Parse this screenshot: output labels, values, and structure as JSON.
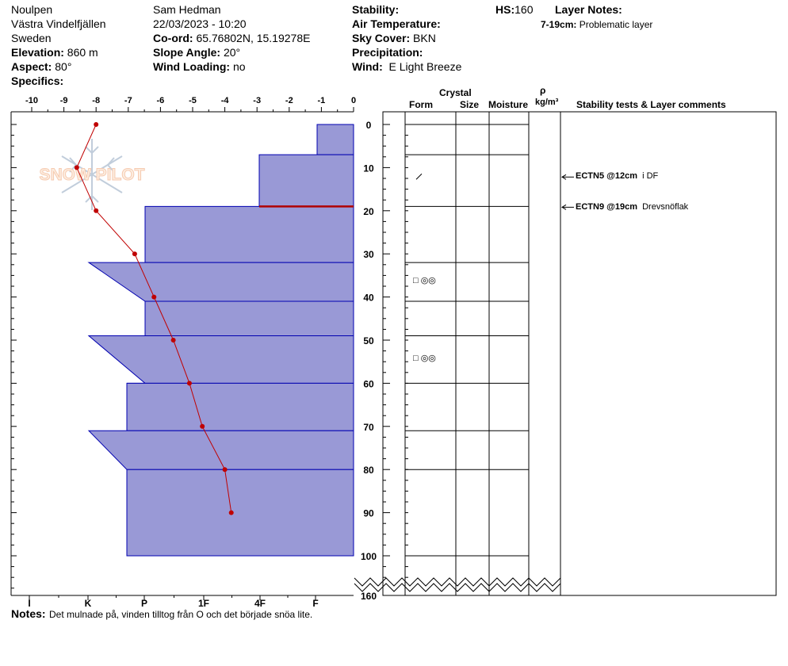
{
  "header": {
    "location": "Noulpen",
    "region": "Västra Vindelfjällen",
    "country": "Sweden",
    "elevation_label": "Elevation:",
    "elevation_value": "860 m",
    "aspect_label": "Aspect:",
    "aspect_value": "80°",
    "specifics_label": "Specifics:",
    "observer": "Sam Hedman",
    "datetime": "22/03/2023 - 10:20",
    "coord_label": "Co-ord:",
    "coord_value": "65.76802N, 15.19278E",
    "slope_label": "Slope Angle:",
    "slope_value": "20°",
    "wind_loading_label": "Wind Loading:",
    "wind_loading_value": "no",
    "stability_label": "Stability:",
    "air_temp_label": "Air Temperature:",
    "sky_cover_label": "Sky Cover:",
    "sky_cover_value": "BKN",
    "precip_label": "Precipitation:",
    "wind_label": "Wind:",
    "wind_value": "E Light Breeze",
    "hs_label": "HS:",
    "hs_value": "160",
    "layer_notes_label": "Layer Notes:",
    "layer_note_range": "7-19cm:",
    "layer_note_text": "Problematic layer"
  },
  "columns": {
    "crystal": "Crystal",
    "form": "Form",
    "size": "Size",
    "moisture": "Moisture",
    "rho": "ρ",
    "density_unit": "kg/m³",
    "stability_comments": "Stability tests & Layer comments"
  },
  "watermark": "SNOW PILOT",
  "notes_label": "Notes:",
  "notes_text": "Det mulnade på, vinden tilltog från O och det började snöa lite.",
  "stability_tests": [
    {
      "test": "ECTN5 @12cm",
      "comment": "i DF",
      "depth": 12
    },
    {
      "test": "ECTN9 @19cm",
      "comment": "Drevsnöflak",
      "depth": 19
    }
  ],
  "colors": {
    "hardness_fill": "#9999d6",
    "hardness_stroke": "#0000b0",
    "temp_line": "#c00000",
    "problem_layer": "#b00000"
  },
  "chart_data": {
    "type": "snow_profile",
    "temperature_axis": {
      "ticks": [
        -10,
        -9,
        -8,
        -7,
        -6,
        -5,
        -4,
        -3,
        -2,
        -1,
        0
      ]
    },
    "depth_axis": {
      "ticks": [
        0,
        10,
        20,
        30,
        40,
        50,
        60,
        70,
        80,
        90,
        100
      ],
      "total_label": "160"
    },
    "hardness_axis": {
      "ticks": [
        "I",
        "K",
        "P",
        "1F",
        "4F",
        "F"
      ]
    },
    "temperature_profile": [
      {
        "depth": 0,
        "temp": -8.0
      },
      {
        "depth": 10,
        "temp": -8.6
      },
      {
        "depth": 20,
        "temp": -8.0
      },
      {
        "depth": 30,
        "temp": -6.8
      },
      {
        "depth": 40,
        "temp": -6.2
      },
      {
        "depth": 50,
        "temp": -5.6
      },
      {
        "depth": 60,
        "temp": -5.1
      },
      {
        "depth": 70,
        "temp": -4.7
      },
      {
        "depth": 80,
        "temp": -4.0
      },
      {
        "depth": 90,
        "temp": -3.8
      }
    ],
    "layer_boundaries": [
      0,
      7,
      19,
      32,
      41,
      49,
      60,
      71,
      80,
      100
    ],
    "problem_layer_depth": 19,
    "crystals": [
      {
        "depth": 12,
        "symbol": "/"
      },
      {
        "depth": 36,
        "symbol": "□ ◎◎"
      },
      {
        "depth": 54,
        "symbol": "□ ◎◎"
      }
    ]
  }
}
